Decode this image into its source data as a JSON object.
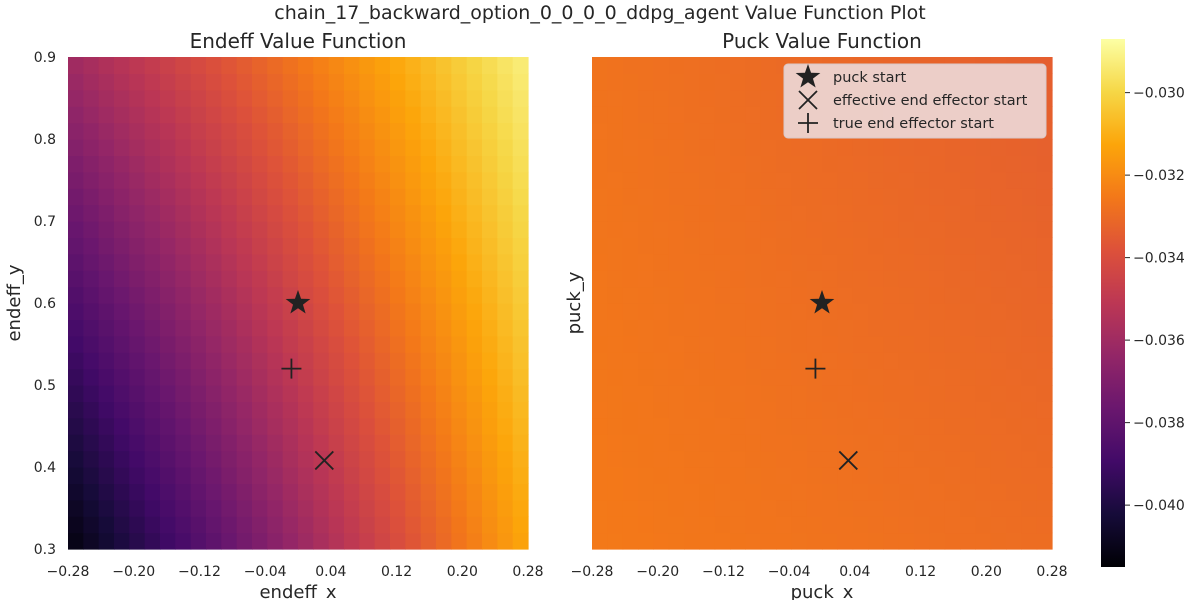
{
  "figure": {
    "suptitle": "chain_17_backward_option_0_0_0_0_ddpg_agent Value Function Plot"
  },
  "chart_data": [
    {
      "type": "heatmap",
      "title": "Endeff Value Function",
      "xlabel": "endeff_x",
      "ylabel": "endeff_y",
      "xlim": [
        -0.28,
        0.28
      ],
      "ylim": [
        0.3,
        0.9
      ],
      "xticks": [
        "-0.28",
        "-0.20",
        "-0.12",
        "-0.04",
        "0.04",
        "0.12",
        "0.20",
        "0.28"
      ],
      "yticks": [
        "0.3",
        "0.4",
        "0.5",
        "0.6",
        "0.7",
        "0.8",
        "0.9"
      ],
      "grid": false,
      "field": {
        "description": "value increases toward upper-right",
        "corner_values": {
          "bottom_left": -0.0413,
          "bottom_right": -0.0312,
          "top_left": -0.036,
          "top_right": -0.0292
        }
      },
      "markers": [
        {
          "label": "puck start",
          "symbol": "star",
          "x": 0.0,
          "y": 0.6
        },
        {
          "label": "effective end effector start",
          "symbol": "x",
          "x": 0.032,
          "y": 0.408
        },
        {
          "label": "true end effector start",
          "symbol": "plus",
          "x": -0.008,
          "y": 0.52
        }
      ]
    },
    {
      "type": "heatmap",
      "title": "Puck Value Function",
      "xlabel": "puck_x",
      "ylabel": "puck_y",
      "xlim": [
        -0.28,
        0.28
      ],
      "ylim": [
        0.3,
        0.9
      ],
      "xticks": [
        "-0.28",
        "-0.20",
        "-0.12",
        "-0.04",
        "0.04",
        "0.12",
        "0.20",
        "0.28"
      ],
      "yticks": [],
      "grid": false,
      "field": {
        "description": "nearly uniform, slightly lower toward upper-right",
        "corner_values": {
          "bottom_left": -0.0325,
          "bottom_right": -0.0329,
          "top_left": -0.0327,
          "top_right": -0.0334
        }
      },
      "markers": [
        {
          "label": "puck start",
          "symbol": "star",
          "x": 0.0,
          "y": 0.6
        },
        {
          "label": "effective end effector start",
          "symbol": "x",
          "x": 0.032,
          "y": 0.408
        },
        {
          "label": "true end effector start",
          "symbol": "plus",
          "x": -0.008,
          "y": 0.52
        }
      ],
      "legend": {
        "placement": "top-right",
        "entries": [
          {
            "symbol": "star",
            "label": "puck start"
          },
          {
            "symbol": "x",
            "label": "effective end effector start"
          },
          {
            "symbol": "plus",
            "label": "true end effector start"
          }
        ]
      }
    }
  ],
  "colorbar": {
    "colormap": "inferno",
    "vmin": -0.0415,
    "vmax": -0.0287,
    "ticks": [
      -0.03,
      -0.032,
      -0.034,
      -0.036,
      -0.038,
      -0.04
    ],
    "tick_labels": [
      "−0.030",
      "−0.032",
      "−0.034",
      "−0.036",
      "−0.038",
      "−0.040"
    ]
  }
}
